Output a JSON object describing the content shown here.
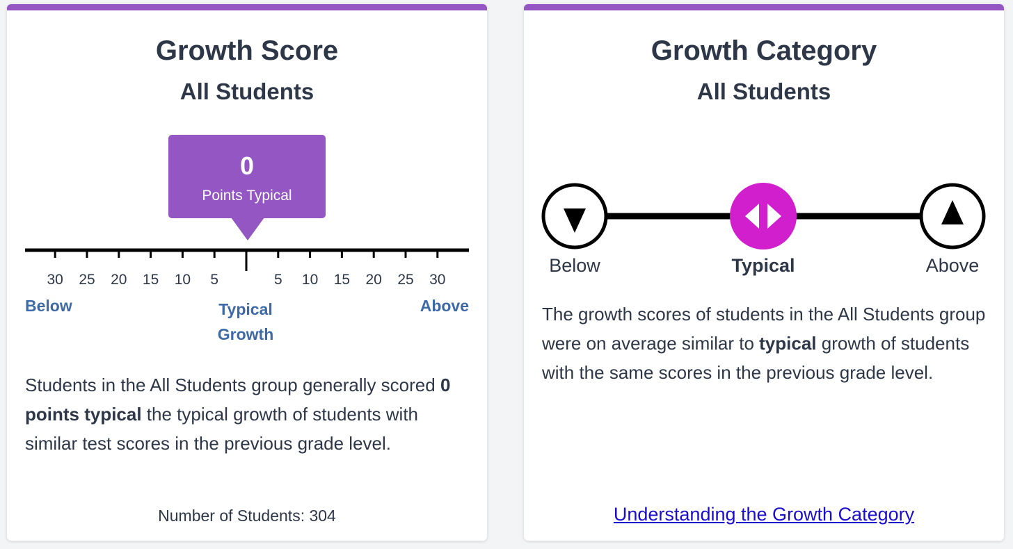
{
  "growth_score": {
    "title": "Growth Score",
    "subtitle": "All Students",
    "score_value": "0",
    "score_label": "Points Typical",
    "ticks_left": [
      "30",
      "25",
      "20",
      "15",
      "10",
      "5"
    ],
    "ticks_right": [
      "5",
      "10",
      "15",
      "20",
      "25",
      "30"
    ],
    "scale_below": "Below",
    "scale_typical_line1": "Typical",
    "scale_typical_line2": "Growth",
    "scale_above": "Above",
    "desc_part1": "Students in the All Students group generally scored ",
    "desc_bold": "0 points typical",
    "desc_part2": " the typical growth of students with similar test scores in the previous grade level.",
    "student_count": "Number of Students: 304",
    "accent_color": "#9356c3"
  },
  "growth_category": {
    "title": "Growth Category",
    "subtitle": "All Students",
    "below_label": "Below",
    "typical_label": "Typical",
    "above_label": "Above",
    "selected": "typical",
    "desc_part1": "The growth scores of students in the All Students group were on average similar to ",
    "desc_bold": "typical",
    "desc_part2": " growth of students with the same scores in the previous grade level.",
    "link_text": "Understanding the Growth Category",
    "highlight_color": "#d11fce"
  }
}
